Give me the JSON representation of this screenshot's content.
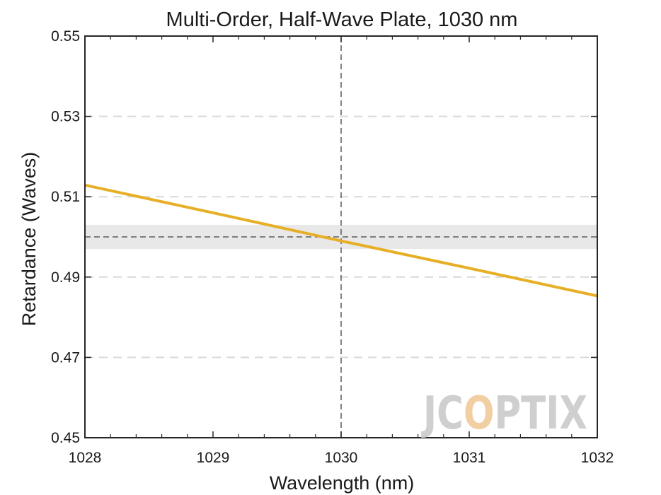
{
  "chart_data": {
    "type": "line",
    "title": "Multi-Order, Half-Wave Plate, 1030 nm",
    "xlabel": "Wavelength (nm)",
    "ylabel": "Retardance (Waves)",
    "xlim": [
      1028,
      1032
    ],
    "ylim": [
      0.45,
      0.55
    ],
    "xticks": [
      1028,
      1029,
      1030,
      1031,
      1032
    ],
    "xtick_labels": [
      "1028",
      "1029",
      "1030",
      "1031",
      "1032"
    ],
    "yticks": [
      0.45,
      0.47,
      0.49,
      0.51,
      0.53,
      0.55
    ],
    "ytick_labels": [
      "0.45",
      "0.47",
      "0.49",
      "0.51",
      "0.53",
      "0.55"
    ],
    "grid": "horizontal-dashed",
    "series": [
      {
        "x": [
          1028,
          1029,
          1030,
          1031,
          1032
        ],
        "y": [
          0.5129,
          0.506,
          0.499,
          0.4922,
          0.4853
        ],
        "color": "#E6AF26"
      }
    ],
    "target_line": {
      "y": 0.5,
      "tolerance_band": [
        0.497,
        0.503
      ],
      "color": "#5a5a5a",
      "band_color": "#e8e8e8"
    },
    "design_wavelength_line": {
      "x": 1030,
      "color": "#5a5a5a"
    }
  },
  "logo": {
    "text": "JCOPTIX",
    "color": "#cfcfcf",
    "accent_color": "#f2cfa2"
  }
}
